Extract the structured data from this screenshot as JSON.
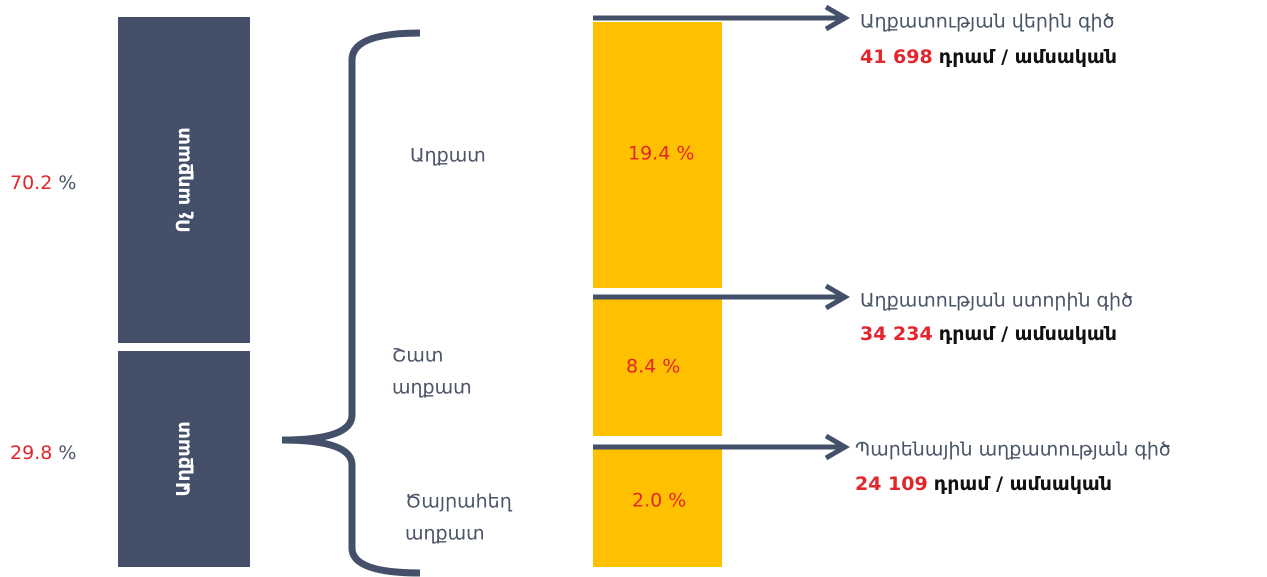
{
  "shares": [
    {
      "value": "70.2",
      "unit": "%",
      "label": "Ոչ աղքատ"
    },
    {
      "value": "29.8",
      "unit": "%",
      "label": "Աղքատ"
    }
  ],
  "groups": [
    {
      "label": [
        "Աղքատ"
      ],
      "share": "19.4  %"
    },
    {
      "label": [
        "Շատ",
        "աղքատ"
      ],
      "share": "8.4  %"
    },
    {
      "label": [
        "Ծայրահեղ",
        "աղքատ"
      ],
      "share": "2.0 %"
    }
  ],
  "lines": [
    {
      "title": "Աղքատության վերին գիծ",
      "amount": "41 698",
      "unit": "դրամ / ամսական"
    },
    {
      "title": "Աղքատության ստորին գիծ",
      "amount": "34 234",
      "unit": "դրամ / ամսական"
    },
    {
      "title": "Պարենային աղքատության գիծ",
      "amount": "24 109",
      "unit": "դրամ / ամսական"
    }
  ]
}
